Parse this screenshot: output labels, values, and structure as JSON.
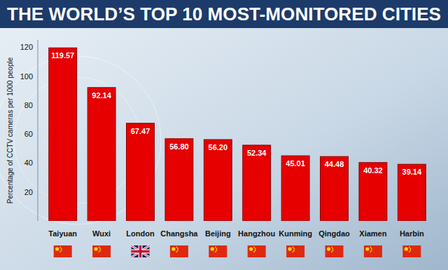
{
  "chart_data": {
    "type": "bar",
    "title": "THE WORLD’S TOP 10 MOST-MONITORED CITIES",
    "ylabel": "Percentage of CCTV cameras per 1000 people",
    "categories": [
      "Taiyuan",
      "Wuxi",
      "London",
      "Changsha",
      "Beijing",
      "Hangzhou",
      "Kunming",
      "Qingdao",
      "Xiamen",
      "Harbin"
    ],
    "values": [
      119.57,
      92.14,
      67.47,
      56.8,
      56.2,
      52.34,
      45.01,
      44.48,
      40.32,
      39.14
    ],
    "value_labels": [
      "119.57",
      "92.14",
      "67.47",
      "56.80",
      "56.20",
      "52.34",
      "45.01",
      "44.48",
      "40.32",
      "39.14"
    ],
    "color": "#e60000",
    "ylim": [
      0,
      125
    ],
    "yticks": [
      20,
      40,
      60,
      80,
      100,
      120
    ],
    "grid": false,
    "data_labels": true
  }
}
